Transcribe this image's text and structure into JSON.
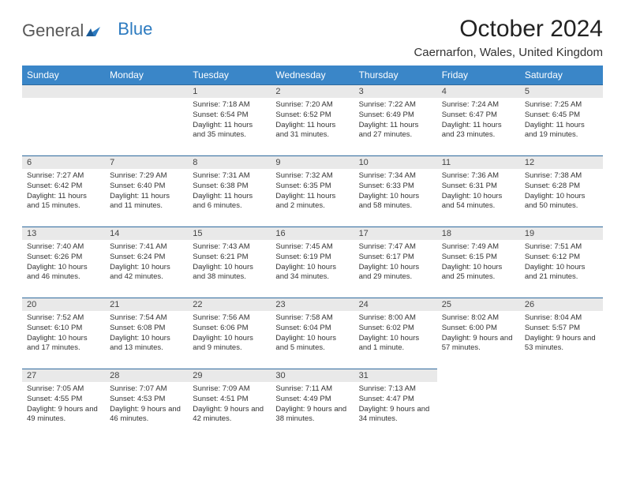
{
  "logo": {
    "part1": "General",
    "part2": "Blue"
  },
  "title": "October 2024",
  "location": "Caernarfon, Wales, United Kingdom",
  "header_bg": "#3a86c8",
  "day_bar_bg": "#e9e9e9",
  "day_bar_border": "#2f6a9e",
  "dayNames": [
    "Sunday",
    "Monday",
    "Tuesday",
    "Wednesday",
    "Thursday",
    "Friday",
    "Saturday"
  ],
  "weeks": [
    [
      null,
      null,
      {
        "n": "1",
        "sunrise": "7:18 AM",
        "sunset": "6:54 PM",
        "daylight": "11 hours and 35 minutes."
      },
      {
        "n": "2",
        "sunrise": "7:20 AM",
        "sunset": "6:52 PM",
        "daylight": "11 hours and 31 minutes."
      },
      {
        "n": "3",
        "sunrise": "7:22 AM",
        "sunset": "6:49 PM",
        "daylight": "11 hours and 27 minutes."
      },
      {
        "n": "4",
        "sunrise": "7:24 AM",
        "sunset": "6:47 PM",
        "daylight": "11 hours and 23 minutes."
      },
      {
        "n": "5",
        "sunrise": "7:25 AM",
        "sunset": "6:45 PM",
        "daylight": "11 hours and 19 minutes."
      }
    ],
    [
      {
        "n": "6",
        "sunrise": "7:27 AM",
        "sunset": "6:42 PM",
        "daylight": "11 hours and 15 minutes."
      },
      {
        "n": "7",
        "sunrise": "7:29 AM",
        "sunset": "6:40 PM",
        "daylight": "11 hours and 11 minutes."
      },
      {
        "n": "8",
        "sunrise": "7:31 AM",
        "sunset": "6:38 PM",
        "daylight": "11 hours and 6 minutes."
      },
      {
        "n": "9",
        "sunrise": "7:32 AM",
        "sunset": "6:35 PM",
        "daylight": "11 hours and 2 minutes."
      },
      {
        "n": "10",
        "sunrise": "7:34 AM",
        "sunset": "6:33 PM",
        "daylight": "10 hours and 58 minutes."
      },
      {
        "n": "11",
        "sunrise": "7:36 AM",
        "sunset": "6:31 PM",
        "daylight": "10 hours and 54 minutes."
      },
      {
        "n": "12",
        "sunrise": "7:38 AM",
        "sunset": "6:28 PM",
        "daylight": "10 hours and 50 minutes."
      }
    ],
    [
      {
        "n": "13",
        "sunrise": "7:40 AM",
        "sunset": "6:26 PM",
        "daylight": "10 hours and 46 minutes."
      },
      {
        "n": "14",
        "sunrise": "7:41 AM",
        "sunset": "6:24 PM",
        "daylight": "10 hours and 42 minutes."
      },
      {
        "n": "15",
        "sunrise": "7:43 AM",
        "sunset": "6:21 PM",
        "daylight": "10 hours and 38 minutes."
      },
      {
        "n": "16",
        "sunrise": "7:45 AM",
        "sunset": "6:19 PM",
        "daylight": "10 hours and 34 minutes."
      },
      {
        "n": "17",
        "sunrise": "7:47 AM",
        "sunset": "6:17 PM",
        "daylight": "10 hours and 29 minutes."
      },
      {
        "n": "18",
        "sunrise": "7:49 AM",
        "sunset": "6:15 PM",
        "daylight": "10 hours and 25 minutes."
      },
      {
        "n": "19",
        "sunrise": "7:51 AM",
        "sunset": "6:12 PM",
        "daylight": "10 hours and 21 minutes."
      }
    ],
    [
      {
        "n": "20",
        "sunrise": "7:52 AM",
        "sunset": "6:10 PM",
        "daylight": "10 hours and 17 minutes."
      },
      {
        "n": "21",
        "sunrise": "7:54 AM",
        "sunset": "6:08 PM",
        "daylight": "10 hours and 13 minutes."
      },
      {
        "n": "22",
        "sunrise": "7:56 AM",
        "sunset": "6:06 PM",
        "daylight": "10 hours and 9 minutes."
      },
      {
        "n": "23",
        "sunrise": "7:58 AM",
        "sunset": "6:04 PM",
        "daylight": "10 hours and 5 minutes."
      },
      {
        "n": "24",
        "sunrise": "8:00 AM",
        "sunset": "6:02 PM",
        "daylight": "10 hours and 1 minute."
      },
      {
        "n": "25",
        "sunrise": "8:02 AM",
        "sunset": "6:00 PM",
        "daylight": "9 hours and 57 minutes."
      },
      {
        "n": "26",
        "sunrise": "8:04 AM",
        "sunset": "5:57 PM",
        "daylight": "9 hours and 53 minutes."
      }
    ],
    [
      {
        "n": "27",
        "sunrise": "7:05 AM",
        "sunset": "4:55 PM",
        "daylight": "9 hours and 49 minutes."
      },
      {
        "n": "28",
        "sunrise": "7:07 AM",
        "sunset": "4:53 PM",
        "daylight": "9 hours and 46 minutes."
      },
      {
        "n": "29",
        "sunrise": "7:09 AM",
        "sunset": "4:51 PM",
        "daylight": "9 hours and 42 minutes."
      },
      {
        "n": "30",
        "sunrise": "7:11 AM",
        "sunset": "4:49 PM",
        "daylight": "9 hours and 38 minutes."
      },
      {
        "n": "31",
        "sunrise": "7:13 AM",
        "sunset": "4:47 PM",
        "daylight": "9 hours and 34 minutes."
      },
      null,
      null
    ]
  ],
  "labels": {
    "sunrise": "Sunrise:",
    "sunset": "Sunset:",
    "daylight": "Daylight:"
  }
}
